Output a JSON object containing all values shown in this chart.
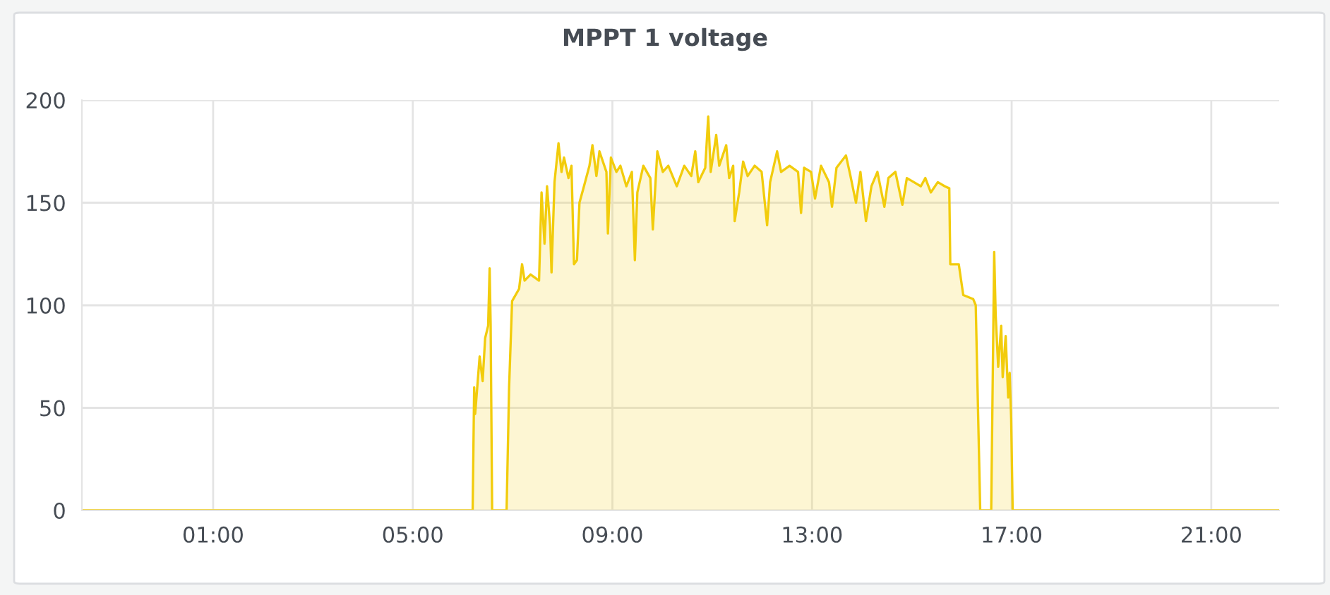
{
  "chart_data": {
    "type": "area",
    "title": "MPPT 1 voltage",
    "x": [
      -1.63,
      6.2,
      6.23,
      6.25,
      6.34,
      6.4,
      6.45,
      6.51,
      6.54,
      6.56,
      6.59,
      6.88,
      6.93,
      6.99,
      7.13,
      7.19,
      7.24,
      7.36,
      7.53,
      7.58,
      7.64,
      7.69,
      7.75,
      7.78,
      7.84,
      7.92,
      7.98,
      8.03,
      8.12,
      8.18,
      8.23,
      8.29,
      8.34,
      8.43,
      8.54,
      8.6,
      8.68,
      8.74,
      8.88,
      8.91,
      8.97,
      9.08,
      9.16,
      9.28,
      9.39,
      9.45,
      9.5,
      9.62,
      9.76,
      9.81,
      9.9,
      10.01,
      10.12,
      10.29,
      10.44,
      10.58,
      10.66,
      10.72,
      10.86,
      10.92,
      10.97,
      11.08,
      11.14,
      11.28,
      11.34,
      11.42,
      11.45,
      11.54,
      11.62,
      11.71,
      11.85,
      11.99,
      12.1,
      12.16,
      12.3,
      12.38,
      12.55,
      12.72,
      12.78,
      12.84,
      12.98,
      13.06,
      13.18,
      13.34,
      13.4,
      13.49,
      13.68,
      13.77,
      13.88,
      13.97,
      14.08,
      14.19,
      14.31,
      14.45,
      14.53,
      14.67,
      14.81,
      14.9,
      15.04,
      15.18,
      15.27,
      15.38,
      15.52,
      15.66,
      15.75,
      15.77,
      15.94,
      16.03,
      16.23,
      16.28,
      16.37,
      16.59,
      16.65,
      16.68,
      16.73,
      16.79,
      16.82,
      16.88,
      16.93,
      16.96,
      16.99,
      17.02,
      22.36
    ],
    "series": [
      {
        "color": "#f2cc0c",
        "values": [
          0,
          0,
          60,
          47,
          75,
          63,
          84,
          90,
          118,
          91,
          0,
          0,
          60,
          102,
          108,
          120,
          112,
          115,
          112,
          155,
          130,
          158,
          139,
          116,
          160,
          179,
          165,
          172,
          162,
          168,
          120,
          122,
          150,
          158,
          168,
          178,
          163,
          175,
          165,
          135,
          172,
          165,
          168,
          158,
          165,
          122,
          155,
          168,
          162,
          137,
          175,
          165,
          168,
          158,
          168,
          163,
          175,
          160,
          167,
          192,
          165,
          183,
          168,
          178,
          162,
          168,
          141,
          155,
          170,
          163,
          168,
          165,
          139,
          160,
          175,
          165,
          168,
          165,
          145,
          167,
          165,
          152,
          168,
          160,
          148,
          167,
          173,
          163,
          150,
          165,
          141,
          158,
          165,
          148,
          162,
          165,
          149,
          162,
          160,
          158,
          162,
          155,
          160,
          158,
          157,
          120,
          120,
          105,
          103,
          100,
          0,
          0,
          126,
          95,
          70,
          90,
          65,
          85,
          55,
          67,
          45,
          0,
          0
        ]
      }
    ],
    "xlim": [
      -1.63,
      22.36
    ],
    "xticks": [
      {
        "value": 1,
        "label": "01:00"
      },
      {
        "value": 5,
        "label": "05:00"
      },
      {
        "value": 9,
        "label": "09:00"
      },
      {
        "value": 13,
        "label": "13:00"
      },
      {
        "value": 17,
        "label": "17:00"
      },
      {
        "value": 21,
        "label": "21:00"
      }
    ],
    "ylim": [
      0,
      200
    ],
    "yticks": [
      0,
      50,
      100,
      150,
      200
    ],
    "grid": true
  }
}
